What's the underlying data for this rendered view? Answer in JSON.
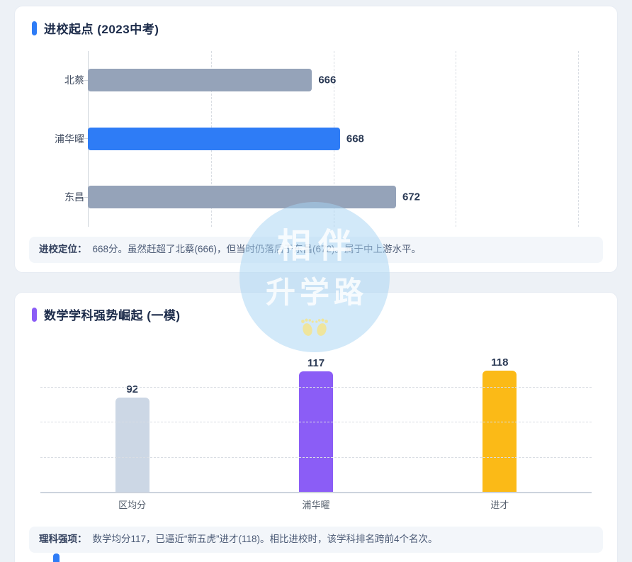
{
  "page": {
    "bg_color": "#edf1f6",
    "card_bg_color": "#ffffff",
    "next_accent_color": "#2e7cf6"
  },
  "card1": {
    "accent_color": "#2e7cf6",
    "title": "进校起点 (2023中考)",
    "note_label": "进校定位：",
    "note_text": "668分。虽然赶超了北蔡(666)，但当时仍落后于东昌(672)。属于中上游水平。"
  },
  "card2": {
    "accent_color": "#8b5df6",
    "title": "数学学科强势崛起 (一模)",
    "note_label": "理科强项：",
    "note_text": "数学均分117，已逼近“新五虎”进才(118)。相比进校时，该学科排名跨前4个名次。"
  },
  "watermark": {
    "line1": "相伴",
    "line2": "升学路",
    "circle_color": "rgba(165,212,243,0.5)",
    "footprints_icon": "baby-footprints",
    "footprints_color": "#efe59d"
  },
  "chart_data": [
    {
      "type": "bar",
      "orientation": "horizontal",
      "title": "进校起点 (2023中考)",
      "categories": [
        "北蔡",
        "浦华曜",
        "东昌"
      ],
      "values": [
        666,
        668,
        672
      ],
      "bar_colors": [
        "#95a3b9",
        "#2e7cf6",
        "#95a3b9"
      ],
      "highlight_category": "浦华曜",
      "xlim": [
        650,
        685
      ],
      "grid": true,
      "legend": false,
      "value_labels": true
    },
    {
      "type": "bar",
      "orientation": "vertical",
      "title": "数学学科强势崛起 (一模)",
      "categories": [
        "区均分",
        "浦华曜",
        "进才"
      ],
      "values": [
        92,
        117,
        118
      ],
      "bar_colors": [
        "#ccd7e5",
        "#8b5df6",
        "#fbba17"
      ],
      "highlight_category": "浦华曜",
      "ylim": [
        0,
        138
      ],
      "grid": true,
      "legend": false,
      "value_labels": true
    }
  ]
}
